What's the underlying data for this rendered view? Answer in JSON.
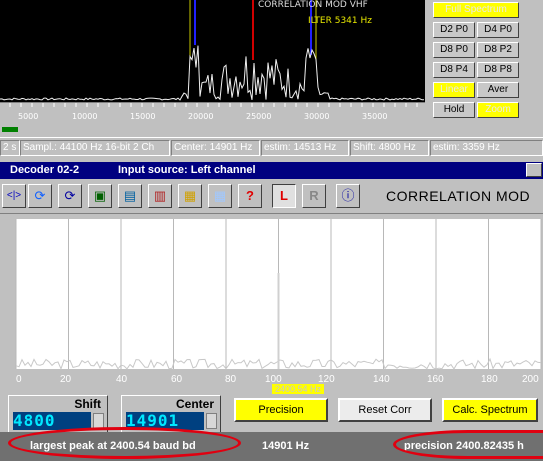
{
  "spectrum": {
    "title": "CORRELATION MOD VHF",
    "filter": "ILTER 5341 Hz",
    "axis_labels": [
      "5000",
      "10000",
      "15000",
      "20000",
      "25000",
      "30000",
      "35000"
    ]
  },
  "right_panel": {
    "buttons": [
      "Full Spectrum",
      "D2 P0",
      "D4 P0",
      "D8 P0",
      "D8 P2",
      "D8 P4",
      "D8 P8",
      "Linear",
      "Aver",
      "Hold",
      "Zoom"
    ]
  },
  "status": {
    "cells": [
      "2 s",
      "Sampl.: 44100 Hz 16-bit 2 Ch",
      "Center: 14901 Hz",
      "estim: 14513 Hz",
      "Shift: 4800 Hz",
      "estim: 3359 Hz"
    ]
  },
  "decoder": {
    "title": "Decoder 02-2",
    "source": "Input source: Left channel",
    "mode": "CORRELATION MOD",
    "toolbar_glyphs": [
      "<|>",
      "⟳",
      "⟳",
      "▣",
      "▤",
      "▥",
      "▦",
      "?",
      "L",
      "R",
      "ⓘ"
    ]
  },
  "correlation": {
    "x_ticks": [
      "0",
      "20",
      "40",
      "60",
      "80",
      "100",
      "120",
      "140",
      "160",
      "180",
      "200"
    ],
    "freq_box": "2400.54 Hz",
    "peak_x": 100
  },
  "controls": {
    "shift_label": "Shift",
    "shift_value": "4800",
    "center_label": "Center",
    "center_value": "14901",
    "precision_btn": "Precision",
    "reset_btn": "Reset Corr",
    "calc_btn": "Calc. Spectrum"
  },
  "bottom": {
    "largest_peak": "largest peak at 2400.54 baud bd",
    "center_hz": "14901 Hz",
    "precision": "precision 2400.82435 h"
  },
  "colors": {
    "title_bar": "#000080",
    "highlight": "#ffff00",
    "annotation": "#e00010"
  }
}
